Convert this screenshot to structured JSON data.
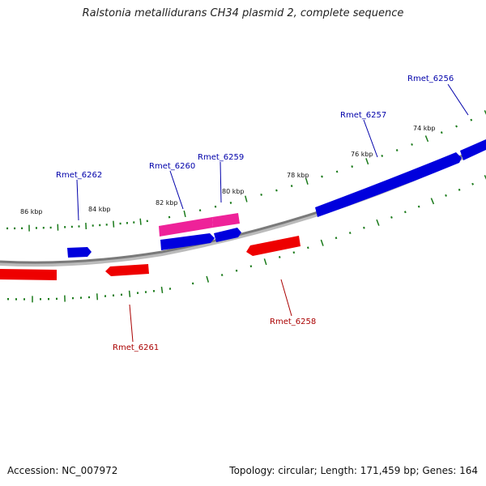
{
  "title": "Ralstonia metallidurans CH34 plasmid 2, complete sequence",
  "footer": {
    "accession": "Accession: NC_007972",
    "summary": "Topology: circular; Length: 171,459 bp; Genes: 164"
  },
  "colors": {
    "forward": "#0000dd",
    "reverse": "#ee0000",
    "highlight": "#ee2299",
    "backbone": "#888888",
    "ticks": "#1a7a1a"
  },
  "scale_labels": [
    "86 kbp",
    "84 kbp",
    "82 kbp",
    "80 kbp",
    "78 kbp",
    "76 kbp",
    "74 kbp"
  ],
  "genes": [
    {
      "name": "Rmet_6256",
      "strand": "forward"
    },
    {
      "name": "Rmet_6257",
      "strand": "forward"
    },
    {
      "name": "Rmet_6258",
      "strand": "reverse"
    },
    {
      "name": "Rmet_6259",
      "strand": "forward"
    },
    {
      "name": "Rmet_6260",
      "strand": "forward"
    },
    {
      "name": "Rmet_6261",
      "strand": "reverse"
    },
    {
      "name": "Rmet_6262",
      "strand": "forward"
    }
  ]
}
